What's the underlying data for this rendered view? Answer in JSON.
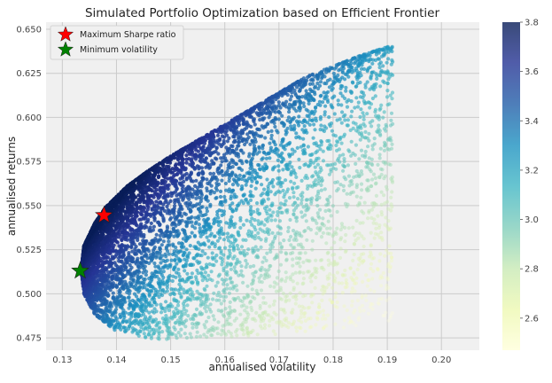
{
  "chart_data": {
    "type": "scatter",
    "title": "Simulated Portfolio Optimization based on Efficient Frontier",
    "xlabel": "annualised volatility",
    "ylabel": "annualised returns",
    "xlim": [
      0.127,
      0.207
    ],
    "ylim": [
      0.468,
      0.654
    ],
    "xticks": [
      0.13,
      0.14,
      0.15,
      0.16,
      0.17,
      0.18,
      0.19,
      0.2
    ],
    "xtick_labels": [
      "0.13",
      "0.14",
      "0.15",
      "0.16",
      "0.17",
      "0.18",
      "0.19",
      "0.20"
    ],
    "yticks": [
      0.475,
      0.5,
      0.525,
      0.55,
      0.575,
      0.6,
      0.625,
      0.65
    ],
    "ytick_labels": [
      "0.475",
      "0.500",
      "0.525",
      "0.550",
      "0.575",
      "0.600",
      "0.625",
      "0.650"
    ],
    "grid": true,
    "background_color": "#f0f0f0",
    "frontier": {
      "min_volatility": 0.1335,
      "min_vol_return": 0.513,
      "upper_edge": [
        [
          0.1335,
          0.513
        ],
        [
          0.134,
          0.527
        ],
        [
          0.136,
          0.54
        ],
        [
          0.138,
          0.549
        ],
        [
          0.142,
          0.561
        ],
        [
          0.146,
          0.57
        ],
        [
          0.15,
          0.578
        ],
        [
          0.155,
          0.587
        ],
        [
          0.16,
          0.596
        ],
        [
          0.165,
          0.605
        ],
        [
          0.17,
          0.614
        ],
        [
          0.175,
          0.623
        ],
        [
          0.18,
          0.629
        ],
        [
          0.185,
          0.635
        ],
        [
          0.19,
          0.64
        ]
      ],
      "lower_edge": [
        [
          0.1335,
          0.513
        ],
        [
          0.134,
          0.5
        ],
        [
          0.136,
          0.488
        ],
        [
          0.139,
          0.48
        ],
        [
          0.143,
          0.476
        ],
        [
          0.148,
          0.474
        ],
        [
          0.155,
          0.475
        ],
        [
          0.165,
          0.476
        ],
        [
          0.175,
          0.478
        ],
        [
          0.185,
          0.481
        ],
        [
          0.19,
          0.483
        ]
      ]
    },
    "colorbar": {
      "label": "",
      "range": [
        2.47,
        3.8
      ],
      "ticks": [
        2.6,
        2.8,
        3.0,
        3.2,
        3.4,
        3.6,
        3.8
      ],
      "tick_labels": [
        "2.6",
        "2.8",
        "3.0",
        "3.2",
        "3.4",
        "3.6",
        "3.8"
      ],
      "colormap": "YlGnBu",
      "stops": [
        "#ffffd9",
        "#edf8b1",
        "#c7e9b4",
        "#7fcdbb",
        "#41b6c4",
        "#1d91c0",
        "#225ea8",
        "#253494",
        "#081d58"
      ]
    },
    "markers": [
      {
        "name": "Maximum Sharpe ratio",
        "x": 0.1377,
        "y": 0.5445,
        "color": "#ff0000",
        "shape": "star"
      },
      {
        "name": "Minimum volatility",
        "x": 0.1333,
        "y": 0.513,
        "color": "#008000",
        "shape": "star"
      }
    ],
    "legend": {
      "position": "top-left",
      "entries": [
        "Maximum Sharpe ratio",
        "Minimum volatility"
      ]
    }
  }
}
